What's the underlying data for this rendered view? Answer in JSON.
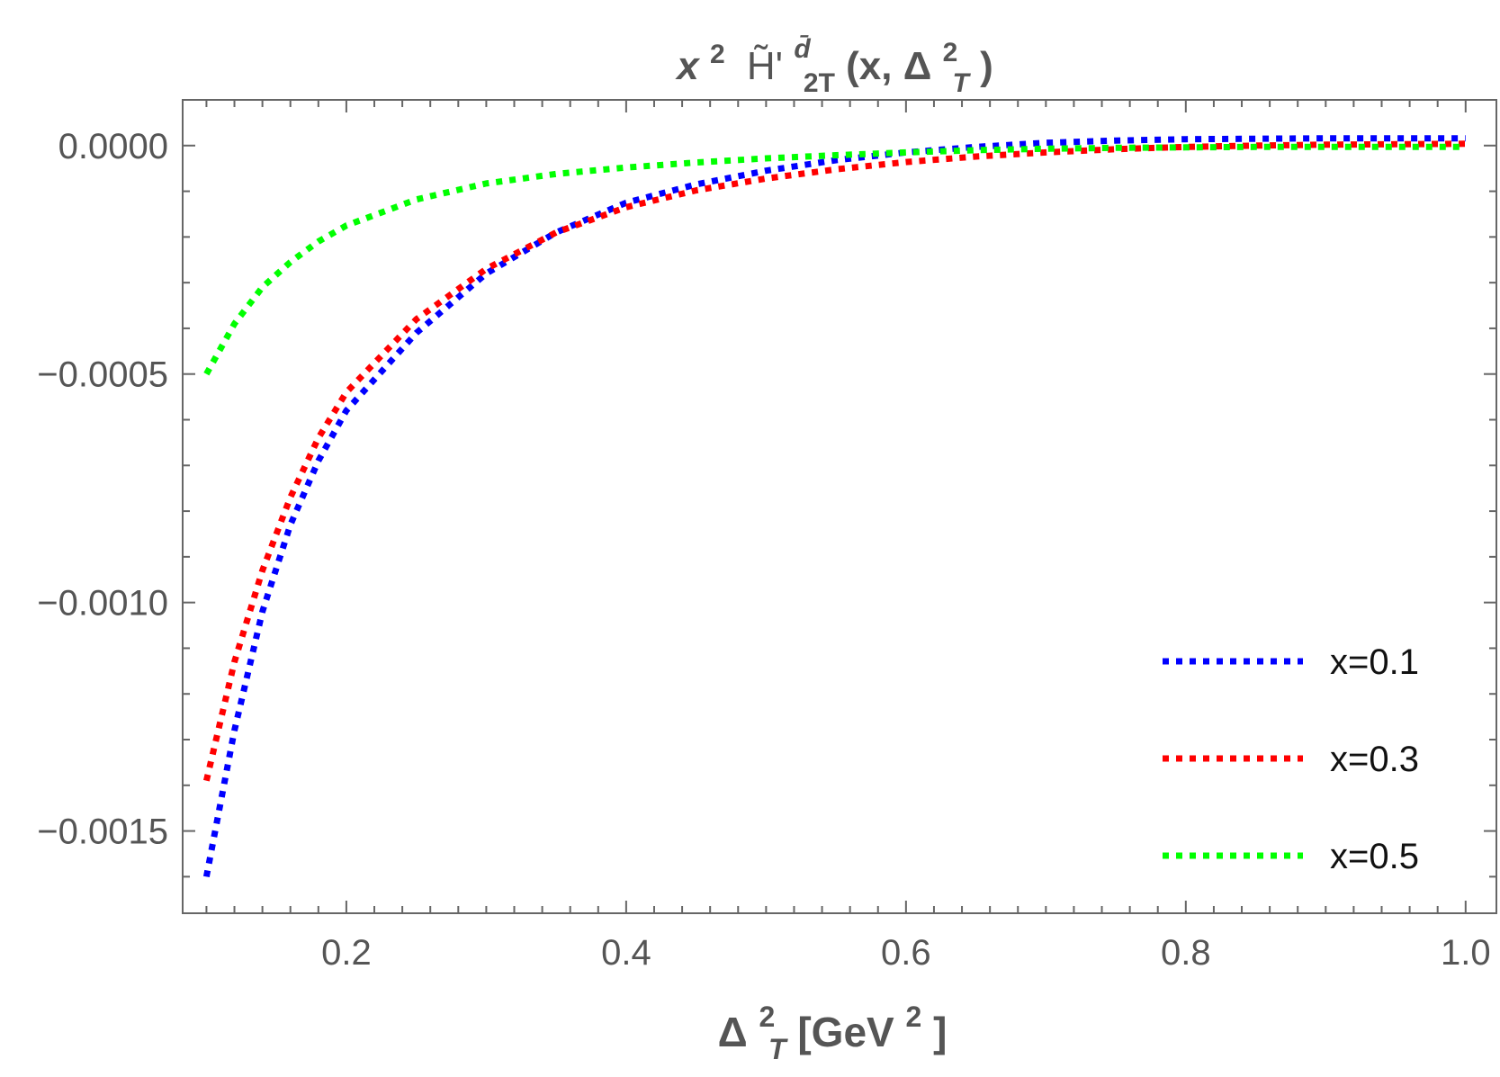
{
  "chart_data": {
    "type": "line",
    "title": {
      "prefix": "x",
      "prefix_sup": "2",
      "symbol": "H̃'",
      "sup": "d̄",
      "sub": "2T",
      "args_open": "(x, Δ",
      "args_sup": "2",
      "args_sub": "T",
      "args_close": ")"
    },
    "xlabel": {
      "symbol": "Δ",
      "sup": "2",
      "sub": "T",
      "unit_open": " [GeV",
      "unit_sup": "2",
      "unit_close": "]"
    },
    "xlim": [
      0.083,
      1.022
    ],
    "ylim": [
      -0.00168,
      0.0001
    ],
    "x_ticks": [
      0.2,
      0.4,
      0.6,
      0.8,
      1.0
    ],
    "x_tick_labels": [
      "0.2",
      "0.4",
      "0.6",
      "0.8",
      "1.0"
    ],
    "y_ticks": [
      0.0,
      -0.0005,
      -0.001,
      -0.0015
    ],
    "y_tick_labels": [
      "0.0000",
      "−0.0005",
      "−0.0010",
      "−0.0015"
    ],
    "grid": false,
    "line_style": "dotted",
    "legend_position": "bottom-right",
    "series": [
      {
        "name": "x=0.1",
        "color": "#0000ff",
        "x": [
          0.1,
          0.12,
          0.14,
          0.16,
          0.18,
          0.2,
          0.25,
          0.3,
          0.35,
          0.4,
          0.45,
          0.5,
          0.55,
          0.6,
          0.65,
          0.7,
          0.75,
          0.8,
          0.85,
          0.9,
          0.95,
          1.0
        ],
        "y": [
          -0.0016,
          -0.00128,
          -0.00102,
          -0.00083,
          -0.00069,
          -0.00058,
          -0.00041,
          -0.00028,
          -0.00019,
          -0.000125,
          -8.5e-05,
          -5.5e-05,
          -3.2e-05,
          -1.5e-05,
          -3e-06,
          6e-06,
          1.1e-05,
          1.4e-05,
          1.5e-05,
          1.6e-05,
          1.6e-05,
          1.6e-05
        ]
      },
      {
        "name": "x=0.3",
        "color": "#ff0000",
        "x": [
          0.1,
          0.12,
          0.14,
          0.16,
          0.18,
          0.2,
          0.25,
          0.3,
          0.35,
          0.4,
          0.45,
          0.5,
          0.55,
          0.6,
          0.65,
          0.7,
          0.75,
          0.8,
          0.85,
          0.9,
          0.95,
          1.0
        ],
        "y": [
          -0.00139,
          -0.00113,
          -0.00093,
          -0.00077,
          -0.00064,
          -0.00054,
          -0.00038,
          -0.00027,
          -0.00019,
          -0.000135,
          -9.8e-05,
          -7.2e-05,
          -5.2e-05,
          -3.6e-05,
          -2.4e-05,
          -1.5e-05,
          -8e-06,
          -3e-06,
          0.0,
          2e-06,
          3e-06,
          4e-06
        ]
      },
      {
        "name": "x=0.5",
        "color": "#00ff00",
        "x": [
          0.1,
          0.12,
          0.14,
          0.16,
          0.18,
          0.2,
          0.25,
          0.3,
          0.35,
          0.4,
          0.45,
          0.5,
          0.55,
          0.6,
          0.65,
          0.7,
          0.75,
          0.8,
          0.85,
          0.9,
          0.95,
          1.0
        ],
        "y": [
          -0.0005,
          -0.00039,
          -0.00031,
          -0.000255,
          -0.00021,
          -0.000175,
          -0.000118,
          -8.3e-05,
          -6.2e-05,
          -4.8e-05,
          -3.7e-05,
          -2.8e-05,
          -2.1e-05,
          -1.5e-05,
          -1e-05,
          -7e-06,
          -5e-06,
          -4e-06,
          -3e-06,
          -3e-06,
          -3e-06,
          -3e-06
        ]
      }
    ]
  }
}
